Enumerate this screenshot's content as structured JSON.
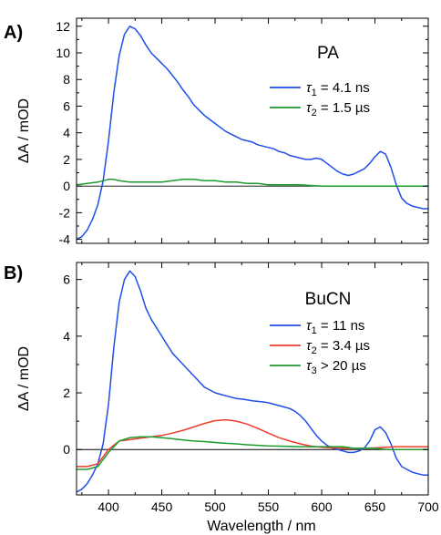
{
  "chart_data": [
    {
      "panel_label": "A)",
      "type": "line",
      "legend_title": "PA",
      "ylabel": "ΔA / mOD",
      "xlabel": "Wavelength / nm",
      "xlim": [
        370,
        700
      ],
      "ylim": [
        -4.3,
        12.6
      ],
      "yticks": [
        -4,
        -2,
        0,
        2,
        4,
        6,
        8,
        10,
        12
      ],
      "xticks": [
        400,
        450,
        500,
        550,
        600,
        650,
        700
      ],
      "zero_line": true,
      "series": [
        {
          "name": "τ1 = 4.1 ns",
          "sym": "τ",
          "sub": "1",
          "rest": " = 4.1 ns",
          "color": "#1f4ee8",
          "x": [
            370,
            375,
            380,
            385,
            390,
            395,
            400,
            405,
            410,
            415,
            420,
            425,
            430,
            435,
            440,
            445,
            450,
            455,
            460,
            465,
            470,
            475,
            480,
            485,
            490,
            495,
            500,
            505,
            510,
            515,
            520,
            525,
            530,
            535,
            540,
            545,
            550,
            555,
            560,
            565,
            570,
            575,
            580,
            585,
            590,
            595,
            600,
            605,
            610,
            615,
            620,
            625,
            630,
            635,
            640,
            645,
            650,
            655,
            660,
            665,
            670,
            675,
            680,
            685,
            690,
            695,
            700
          ],
          "y": [
            -4.0,
            -3.8,
            -3.3,
            -2.5,
            -1.4,
            0.4,
            3.4,
            7.0,
            9.8,
            11.4,
            12.0,
            11.8,
            11.3,
            10.6,
            10.0,
            9.6,
            9.2,
            8.8,
            8.3,
            7.8,
            7.2,
            6.7,
            6.1,
            5.7,
            5.3,
            5.0,
            4.7,
            4.4,
            4.1,
            3.9,
            3.7,
            3.5,
            3.4,
            3.3,
            3.1,
            3.0,
            2.9,
            2.8,
            2.6,
            2.5,
            2.3,
            2.2,
            2.1,
            2.0,
            2.0,
            2.1,
            2.0,
            1.7,
            1.4,
            1.1,
            0.9,
            0.8,
            0.9,
            1.1,
            1.3,
            1.7,
            2.2,
            2.6,
            2.4,
            1.4,
            0.1,
            -0.9,
            -1.3,
            -1.5,
            -1.6,
            -1.7,
            -1.7
          ]
        },
        {
          "name": "τ2 = 1.5 µs",
          "sym": "τ",
          "sub": "2",
          "rest": " = 1.5 µs",
          "color": "#1e9b2e",
          "x": [
            370,
            380,
            390,
            400,
            405,
            410,
            420,
            430,
            440,
            450,
            460,
            470,
            480,
            490,
            500,
            510,
            520,
            530,
            540,
            550,
            560,
            580,
            600,
            620,
            640,
            660,
            680,
            700
          ],
          "y": [
            0.1,
            0.2,
            0.3,
            0.5,
            0.5,
            0.4,
            0.3,
            0.3,
            0.3,
            0.3,
            0.4,
            0.5,
            0.5,
            0.4,
            0.4,
            0.3,
            0.3,
            0.2,
            0.2,
            0.1,
            0.1,
            0.1,
            0.0,
            0.0,
            0.0,
            0.0,
            0.0,
            0.0
          ]
        }
      ]
    },
    {
      "panel_label": "B)",
      "type": "line",
      "legend_title": "BuCN",
      "ylabel": "ΔA / mOD",
      "xlabel": "Wavelength / nm",
      "xlim": [
        370,
        700
      ],
      "ylim": [
        -1.6,
        6.6
      ],
      "yticks": [
        0,
        2,
        4,
        6
      ],
      "xticks": [
        400,
        450,
        500,
        550,
        600,
        650,
        700
      ],
      "xtick_labels": [
        "400",
        "450",
        "500",
        "550",
        "600",
        "650",
        "700"
      ],
      "zero_line": true,
      "series": [
        {
          "name": "τ1 = 11 ns",
          "sym": "τ",
          "sub": "1",
          "rest": " = 11 ns",
          "color": "#1f4ee8",
          "x": [
            370,
            375,
            380,
            385,
            390,
            395,
            400,
            405,
            410,
            415,
            420,
            425,
            430,
            435,
            440,
            445,
            450,
            455,
            460,
            465,
            470,
            475,
            480,
            485,
            490,
            495,
            500,
            505,
            510,
            515,
            520,
            525,
            530,
            535,
            540,
            545,
            550,
            555,
            560,
            565,
            570,
            575,
            580,
            585,
            590,
            595,
            600,
            605,
            610,
            615,
            620,
            625,
            630,
            635,
            640,
            645,
            650,
            655,
            660,
            665,
            670,
            675,
            680,
            685,
            690,
            695,
            700
          ],
          "y": [
            -1.5,
            -1.4,
            -1.2,
            -0.9,
            -0.5,
            0.2,
            1.6,
            3.6,
            5.2,
            6.0,
            6.3,
            6.1,
            5.6,
            5.0,
            4.6,
            4.3,
            4.0,
            3.7,
            3.4,
            3.2,
            3.0,
            2.8,
            2.6,
            2.4,
            2.2,
            2.1,
            2.0,
            1.95,
            1.9,
            1.85,
            1.8,
            1.78,
            1.75,
            1.72,
            1.7,
            1.68,
            1.65,
            1.6,
            1.55,
            1.5,
            1.45,
            1.35,
            1.2,
            1.0,
            0.75,
            0.5,
            0.3,
            0.15,
            0.05,
            0.0,
            -0.05,
            -0.1,
            -0.1,
            -0.05,
            0.05,
            0.3,
            0.7,
            0.8,
            0.6,
            0.2,
            -0.3,
            -0.6,
            -0.7,
            -0.8,
            -0.85,
            -0.9,
            -0.9
          ]
        },
        {
          "name": "τ2 = 3.4 µs",
          "sym": "τ",
          "sub": "2",
          "rest": " = 3.4 µs",
          "color": "#ee3b2f",
          "x": [
            370,
            380,
            390,
            400,
            410,
            420,
            430,
            440,
            450,
            460,
            470,
            480,
            490,
            500,
            510,
            520,
            530,
            540,
            550,
            560,
            570,
            580,
            590,
            600,
            610,
            620,
            630,
            640,
            650,
            660,
            670,
            680,
            690,
            700
          ],
          "y": [
            -0.6,
            -0.6,
            -0.5,
            0.0,
            0.3,
            0.35,
            0.4,
            0.45,
            0.5,
            0.58,
            0.68,
            0.8,
            0.92,
            1.02,
            1.05,
            1.0,
            0.9,
            0.75,
            0.58,
            0.42,
            0.3,
            0.2,
            0.12,
            0.08,
            0.06,
            0.05,
            0.05,
            0.05,
            0.06,
            0.08,
            0.1,
            0.1,
            0.1,
            0.1
          ]
        },
        {
          "name": "τ3 > 20 µs",
          "sym": "τ",
          "sub": "3",
          "rest": " > 20 µs",
          "color": "#1e9b2e",
          "x": [
            370,
            380,
            390,
            400,
            410,
            420,
            430,
            440,
            450,
            460,
            470,
            480,
            490,
            500,
            510,
            520,
            530,
            540,
            550,
            560,
            570,
            580,
            590,
            600,
            610,
            620,
            630,
            640,
            650,
            660,
            670,
            680,
            690,
            700
          ],
          "y": [
            -0.7,
            -0.7,
            -0.6,
            -0.1,
            0.3,
            0.42,
            0.45,
            0.45,
            0.42,
            0.38,
            0.34,
            0.3,
            0.28,
            0.25,
            0.22,
            0.2,
            0.17,
            0.15,
            0.13,
            0.12,
            0.11,
            0.1,
            0.1,
            0.1,
            0.1,
            0.1,
            0.05,
            0.05,
            0.05,
            0.0,
            0.0,
            0.0,
            0.0,
            0.0
          ]
        }
      ]
    }
  ]
}
